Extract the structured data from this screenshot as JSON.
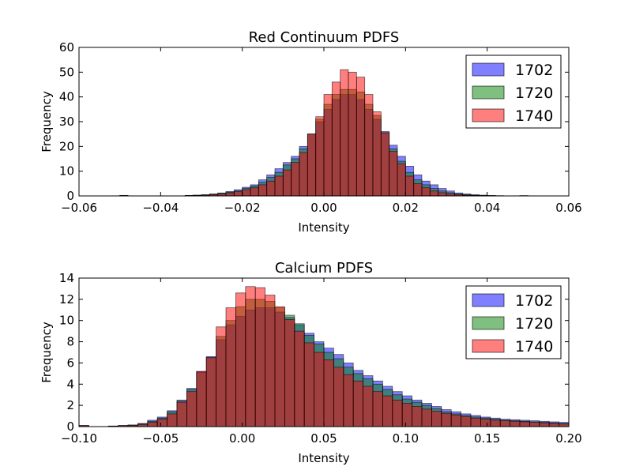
{
  "chart_data": [
    {
      "type": "bar",
      "title": "Red Continuum PDFS",
      "xlabel": "Intensity",
      "ylabel": "Frequency",
      "xlim": [
        -0.06,
        0.06
      ],
      "ylim": [
        0,
        60
      ],
      "xticks": [
        "−0.06",
        "−0.04",
        "−0.02",
        "0.00",
        "0.02",
        "0.04",
        "0.06"
      ],
      "yticks": [
        "0",
        "10",
        "20",
        "30",
        "40",
        "50",
        "60"
      ],
      "legend_position": "top-right",
      "bin_start": -0.05,
      "bin_width": 0.002,
      "series": [
        {
          "name": "1702",
          "color": "#0000ff",
          "values": [
            0.2,
            0,
            0,
            0,
            0,
            0,
            0,
            0,
            0.2,
            0.3,
            0.5,
            0.8,
            1.2,
            1.8,
            2.5,
            3.5,
            4.5,
            6.5,
            8.5,
            11,
            13.5,
            16,
            20,
            25,
            30,
            35,
            39,
            41,
            41,
            39,
            35,
            31,
            26,
            20.5,
            16,
            12,
            8.5,
            6,
            4.5,
            3,
            2,
            1.2,
            0.8,
            0.5,
            0.3,
            0.2,
            0.1,
            0,
            0,
            0.1
          ]
        },
        {
          "name": "1720",
          "color": "#008000",
          "values": [
            0.2,
            0,
            0,
            0,
            0,
            0,
            0,
            0,
            0.2,
            0.3,
            0.4,
            0.7,
            1,
            1.5,
            2,
            3,
            4,
            5.5,
            7.5,
            9.5,
            12.5,
            15,
            19,
            25,
            31,
            37,
            41,
            43,
            43,
            42,
            37,
            32.5,
            25.5,
            19,
            14,
            9.5,
            6.5,
            4.5,
            3,
            2,
            1.3,
            0.8,
            0.5,
            0.3,
            0.2,
            0.1,
            0,
            0,
            0,
            0.1
          ]
        },
        {
          "name": "1740",
          "color": "#ff0000",
          "values": [
            0.1,
            0,
            0,
            0,
            0,
            0,
            0,
            0,
            0.1,
            0.2,
            0.3,
            0.5,
            0.8,
            1.2,
            1.7,
            2.5,
            3.3,
            4.5,
            6,
            8,
            10.5,
            13.5,
            17.5,
            25,
            32,
            41,
            46,
            51,
            50,
            48,
            41,
            34,
            25.5,
            18,
            13,
            8,
            5,
            3.3,
            2,
            1.3,
            0.8,
            0.5,
            0.3,
            0.2,
            0.1,
            0.1,
            0,
            0,
            0,
            0
          ]
        }
      ]
    },
    {
      "type": "bar",
      "title": "Calcium PDFS",
      "xlabel": "Intensity",
      "ylabel": "Frequency",
      "xlim": [
        -0.1,
        0.2
      ],
      "ylim": [
        0,
        14
      ],
      "xticks": [
        "−0.10",
        "−0.05",
        "0.00",
        "0.05",
        "0.10",
        "0.15",
        "0.20"
      ],
      "yticks": [
        "0",
        "2",
        "4",
        "6",
        "8",
        "10",
        "12",
        "14"
      ],
      "legend_position": "top-right",
      "bin_start": -0.1,
      "bin_width": 0.006,
      "series": [
        {
          "name": "1702",
          "color": "#0000ff",
          "values": [
            0.1,
            0,
            0,
            0.05,
            0.1,
            0.15,
            0.3,
            0.6,
            0.9,
            1.5,
            2.5,
            3.6,
            5.2,
            6.6,
            8.2,
            9.6,
            10.4,
            11,
            11.2,
            11.2,
            10.8,
            10.3,
            9.6,
            8.8,
            8,
            7.4,
            6.8,
            6,
            5.3,
            4.8,
            4.3,
            3.8,
            3.3,
            2.9,
            2.5,
            2.2,
            1.9,
            1.6,
            1.4,
            1.2,
            1.05,
            0.9,
            0.8,
            0.7,
            0.65,
            0.6,
            0.55,
            0.5,
            0.45,
            0.4
          ]
        },
        {
          "name": "1720",
          "color": "#008000",
          "values": [
            0.1,
            0,
            0,
            0.05,
            0.1,
            0.15,
            0.25,
            0.5,
            0.8,
            1.4,
            2.4,
            3.5,
            5.1,
            6.5,
            8.5,
            10,
            11.3,
            12,
            12,
            11.8,
            11.2,
            10.5,
            9.7,
            8.6,
            7.8,
            7,
            6.4,
            5.6,
            5,
            4.5,
            4,
            3.5,
            3,
            2.6,
            2.3,
            2,
            1.7,
            1.4,
            1.2,
            1.05,
            0.9,
            0.8,
            0.7,
            0.6,
            0.55,
            0.5,
            0.45,
            0.4,
            0.35,
            0.3
          ]
        },
        {
          "name": "1740",
          "color": "#ff0000",
          "values": [
            0.1,
            0,
            0,
            0.05,
            0.1,
            0.1,
            0.2,
            0.4,
            0.7,
            1.2,
            2.3,
            3.3,
            5.2,
            6.5,
            9.4,
            11.2,
            12.6,
            13.2,
            13.1,
            12.4,
            11.3,
            10.1,
            9,
            7.9,
            7,
            6.3,
            5.6,
            4.9,
            4.3,
            3.8,
            3.3,
            2.9,
            2.5,
            2.2,
            1.9,
            1.65,
            1.45,
            1.25,
            1.1,
            0.95,
            0.8,
            0.7,
            0.6,
            0.55,
            0.5,
            0.45,
            0.4,
            0.35,
            0.3,
            0.25
          ]
        }
      ]
    }
  ]
}
